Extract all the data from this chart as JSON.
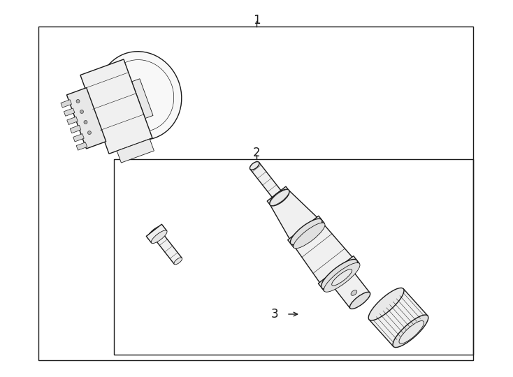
{
  "bg_color": "#ffffff",
  "line_color": "#1a1a1a",
  "figsize": [
    7.34,
    5.4
  ],
  "dpi": 100,
  "label1": "1",
  "label2": "2",
  "label3": "3"
}
